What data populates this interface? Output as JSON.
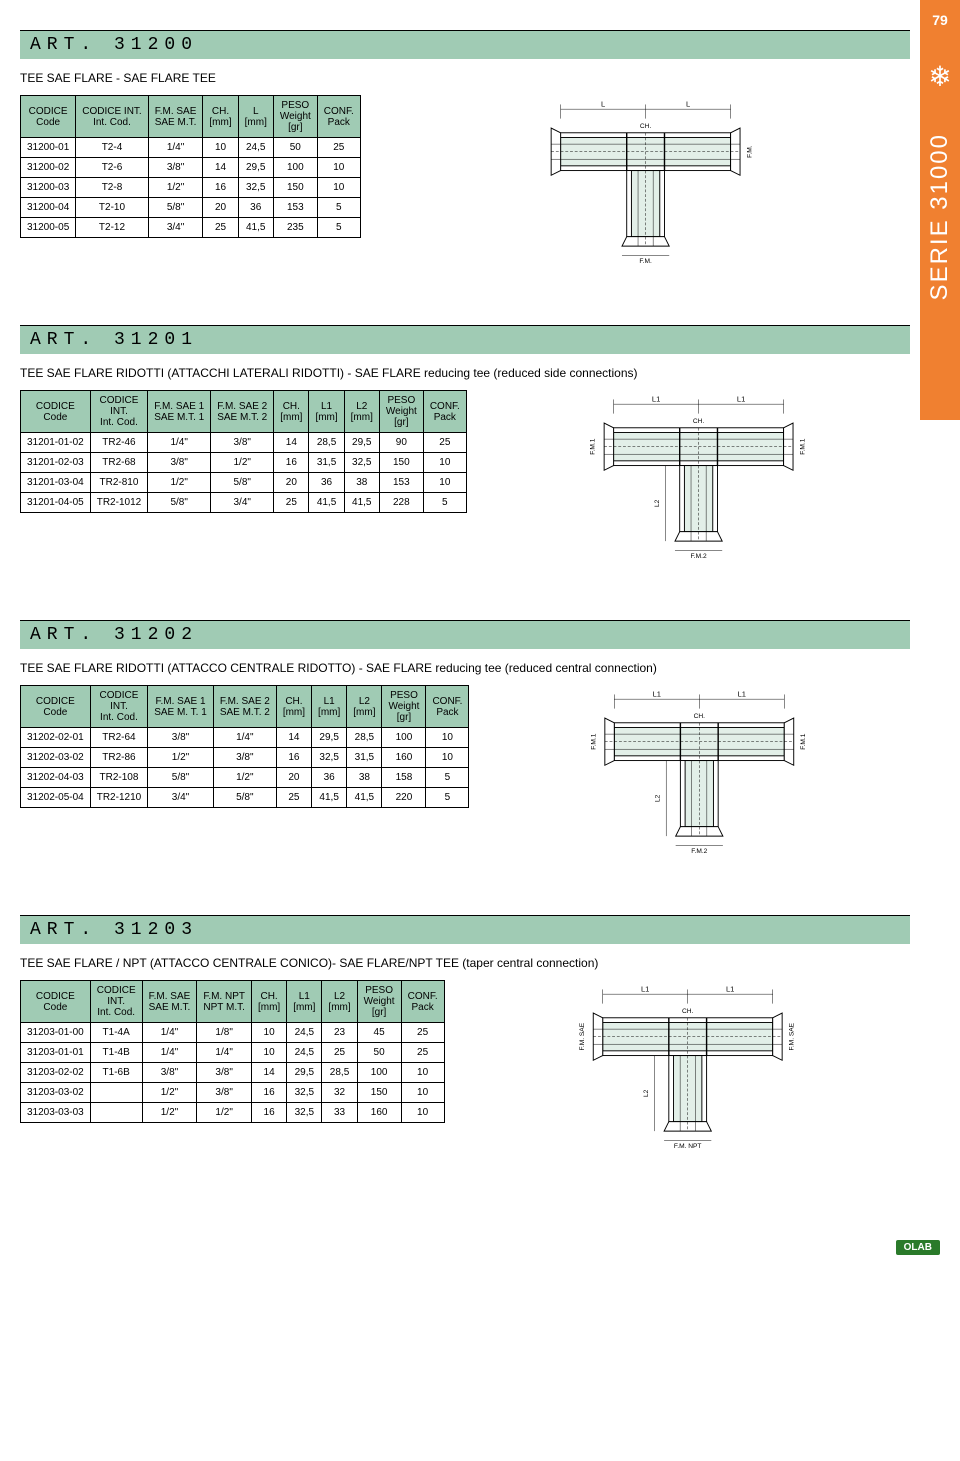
{
  "page_number": "79",
  "series_label": "SERIE 31000",
  "colors": {
    "orange": "#f08030",
    "green": "#a0cbb4",
    "white": "#ffffff",
    "black": "#000000",
    "hatch": "#a0cbb4"
  },
  "sections": [
    {
      "art": "ART. 31200",
      "subtitle": "TEE SAE FLARE - SAE FLARE TEE",
      "columns": [
        "CODICE\nCode",
        "CODICE INT.\nInt. Cod.",
        "F.M. SAE\nSAE M.T.",
        "CH.\n[mm]",
        "L\n[mm]",
        "PESO\nWeight\n[gr]",
        "CONF.\nPack"
      ],
      "rows": [
        [
          "31200-01",
          "T2-4",
          "1/4\"",
          "10",
          "24,5",
          "50",
          "25"
        ],
        [
          "31200-02",
          "T2-6",
          "3/8\"",
          "14",
          "29,5",
          "100",
          "10"
        ],
        [
          "31200-03",
          "T2-8",
          "1/2\"",
          "16",
          "32,5",
          "150",
          "10"
        ],
        [
          "31200-04",
          "T2-10",
          "5/8\"",
          "20",
          "36",
          "153",
          "5"
        ],
        [
          "31200-05",
          "T2-12",
          "3/4\"",
          "25",
          "41,5",
          "235",
          "5"
        ]
      ],
      "diagram_labels": {
        "top_left": "L",
        "top_right": "L",
        "center": "CH.",
        "bottom": "F.M.",
        "right": "F.M."
      }
    },
    {
      "art": "ART. 31201",
      "subtitle": "TEE SAE FLARE RIDOTTI (ATTACCHI LATERALI RIDOTTI) - SAE FLARE reducing tee (reduced side connections)",
      "columns": [
        "CODICE\nCode",
        "CODICE\nINT.\nInt. Cod.",
        "F.M. SAE 1\nSAE M.T. 1",
        "F.M. SAE 2\nSAE M.T. 2",
        "CH.\n[mm]",
        "L1\n[mm]",
        "L2\n[mm]",
        "PESO\nWeight\n[gr]",
        "CONF.\nPack"
      ],
      "rows": [
        [
          "31201-01-02",
          "TR2-46",
          "1/4\"",
          "3/8\"",
          "14",
          "28,5",
          "29,5",
          "90",
          "25"
        ],
        [
          "31201-02-03",
          "TR2-68",
          "3/8\"",
          "1/2\"",
          "16",
          "31,5",
          "32,5",
          "150",
          "10"
        ],
        [
          "31201-03-04",
          "TR2-810",
          "1/2\"",
          "5/8\"",
          "20",
          "36",
          "38",
          "153",
          "10"
        ],
        [
          "31201-04-05",
          "TR2-1012",
          "5/8\"",
          "3/4\"",
          "25",
          "41,5",
          "41,5",
          "228",
          "5"
        ]
      ],
      "diagram_labels": {
        "top_left": "L1",
        "top_right": "L1",
        "center": "CH.",
        "bottom": "F.M.2",
        "left": "F.M.1",
        "right": "F.M.1",
        "vert": "L2"
      }
    },
    {
      "art": "ART. 31202",
      "subtitle": "TEE SAE FLARE RIDOTTI (ATTACCO CENTRALE RIDOTTO) - SAE FLARE reducing tee (reduced central connection)",
      "columns": [
        "CODICE\nCode",
        "CODICE\nINT.\nInt. Cod.",
        "F.M. SAE 1\nSAE M. T. 1",
        "F.M. SAE 2\nSAE M.T. 2",
        "CH.\n[mm]",
        "L1\n[mm]",
        "L2\n[mm]",
        "PESO\nWeight\n[gr]",
        "CONF.\nPack"
      ],
      "rows": [
        [
          "31202-02-01",
          "TR2-64",
          "3/8\"",
          "1/4\"",
          "14",
          "29,5",
          "28,5",
          "100",
          "10"
        ],
        [
          "31202-03-02",
          "TR2-86",
          "1/2\"",
          "3/8\"",
          "16",
          "32,5",
          "31,5",
          "160",
          "10"
        ],
        [
          "31202-04-03",
          "TR2-108",
          "5/8\"",
          "1/2\"",
          "20",
          "36",
          "38",
          "158",
          "5"
        ],
        [
          "31202-05-04",
          "TR2-1210",
          "3/4\"",
          "5/8\"",
          "25",
          "41,5",
          "41,5",
          "220",
          "5"
        ]
      ],
      "diagram_labels": {
        "top_left": "L1",
        "top_right": "L1",
        "center": "CH.",
        "bottom": "F.M.2",
        "left": "F.M.1",
        "right": "F.M.1",
        "vert": "L2"
      }
    },
    {
      "art": "ART. 31203",
      "subtitle": "TEE SAE FLARE / NPT (ATTACCO CENTRALE CONICO)- SAE FLARE/NPT TEE (taper central connection)",
      "columns": [
        "CODICE\nCode",
        "CODICE\nINT.\nInt. Cod.",
        "F.M. SAE\nSAE M.T.",
        "F.M. NPT\nNPT M.T.",
        "CH.\n[mm]",
        "L1\n[mm]",
        "L2\n[mm]",
        "PESO\nWeight\n[gr]",
        "CONF.\nPack"
      ],
      "rows": [
        [
          "31203-01-00",
          "T1-4A",
          "1/4\"",
          "1/8\"",
          "10",
          "24,5",
          "23",
          "45",
          "25"
        ],
        [
          "31203-01-01",
          "T1-4B",
          "1/4\"",
          "1/4\"",
          "10",
          "24,5",
          "25",
          "50",
          "25"
        ],
        [
          "31203-02-02",
          "T1-6B",
          "3/8\"",
          "3/8\"",
          "14",
          "29,5",
          "28,5",
          "100",
          "10"
        ],
        [
          "31203-03-02",
          "",
          "1/2\"",
          "3/8\"",
          "16",
          "32,5",
          "32",
          "150",
          "10"
        ],
        [
          "31203-03-03",
          "",
          "1/2\"",
          "1/2\"",
          "16",
          "32,5",
          "33",
          "160",
          "10"
        ]
      ],
      "diagram_labels": {
        "top_left": "L1",
        "top_right": "L1",
        "center": "CH.",
        "bottom": "F.M. NPT",
        "left": "F.M. SAE",
        "right": "F.M. SAE",
        "vert": "L2"
      }
    }
  ],
  "footer_logo": "OLAB"
}
